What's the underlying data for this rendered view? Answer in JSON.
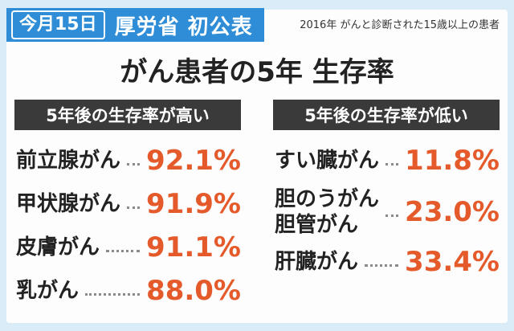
{
  "banner": {
    "date": "今月15日",
    "title": "厚労省 初公表"
  },
  "source_note": "2016年 がんと診断された15歳以上の患者",
  "title": "がん患者の5年 生存率",
  "high": {
    "heading": "5年後の生存率が高い",
    "items": [
      {
        "name": "前立腺がん",
        "value": "92.1%"
      },
      {
        "name": "甲状腺がん",
        "value": "91.9%"
      },
      {
        "name": "皮膚がん",
        "value": "91.1%"
      },
      {
        "name": "乳がん",
        "value": "88.0%"
      }
    ]
  },
  "low": {
    "heading": "5年後の生存率が低い",
    "items": [
      {
        "name": "すい臓がん",
        "value": "11.8%"
      },
      {
        "name_line1": "胆のうがん",
        "name_line2": "胆管がん",
        "value": "23.0%"
      },
      {
        "name": "肝臓がん",
        "value": "33.4%"
      }
    ]
  },
  "colors": {
    "banner": "#2e8dd6",
    "accent": "#e55a2b",
    "heading_bg": "#3a3a3a",
    "background": "#d9ecf8"
  }
}
